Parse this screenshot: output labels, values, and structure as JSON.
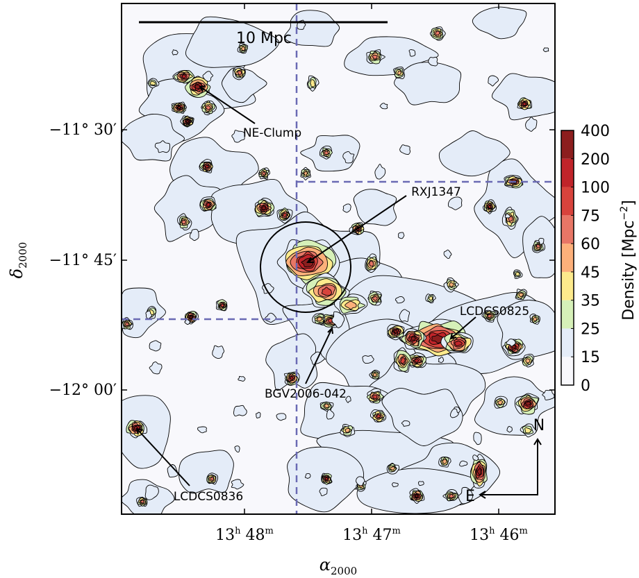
{
  "chart_data": {
    "type": "heatmap",
    "xlabel": "α",
    "xlabel_sub": "2000",
    "ylabel": "δ",
    "ylabel_sub": "2000",
    "x_ticks": [
      {
        "h": "13",
        "m": "48"
      },
      {
        "h": "13",
        "m": "47"
      },
      {
        "h": "13",
        "m": "46"
      }
    ],
    "y_ticks": [
      "−11°  30′",
      "−11°  45′",
      "−12°  00′"
    ],
    "scale_bar_label": "10 Mpc",
    "colorbar": {
      "label": "Density [Mpc",
      "label_exp": "−2",
      "label_close": "]",
      "levels": [
        0,
        15,
        25,
        35,
        45,
        60,
        75,
        100,
        200,
        400
      ],
      "tick_labels": [
        "400",
        "200",
        "100",
        "75",
        "60",
        "45",
        "35",
        "25",
        "15",
        "0"
      ],
      "colors": [
        "#f8f8fc",
        "#e4ecf8",
        "#d6f0b8",
        "#fdea8c",
        "#fdb07a",
        "#e87666",
        "#d8433c",
        "#c0242a",
        "#8c1e1e"
      ]
    },
    "annotations": [
      "NE-Clump",
      "RXJ1347",
      "LCDCS0825",
      "BGV2006-042",
      "LCDCS0836"
    ],
    "compass": {
      "north": "N",
      "east": "E"
    },
    "blobs": [
      {
        "name": "RXJ1347",
        "peak": 400
      },
      {
        "name": "LCDCS0825",
        "peak": 400
      },
      {
        "name": "NE-Clump",
        "peak": 200
      },
      {
        "name": "LCDCS0836",
        "peak": 400
      },
      {
        "name": "BGV2006-042",
        "peak": 100
      }
    ]
  }
}
